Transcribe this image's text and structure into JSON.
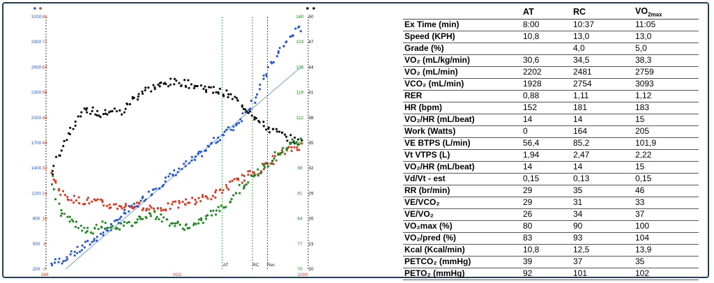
{
  "chart_data": {
    "type": "scatter",
    "xlabel": "VO2",
    "x_range_labels": [
      "349",
      "3200"
    ],
    "left_axes": [
      {
        "color": "#2358d6",
        "ticks": [
          "200",
          "500",
          "800",
          "1100",
          "1400",
          "1700",
          "2000",
          "2300",
          "2600",
          "2900",
          "3200"
        ]
      },
      {
        "color": "#d93a1f",
        "ticks": [
          "0",
          "8",
          "16",
          "24",
          "32",
          "40",
          "48",
          "56",
          "64",
          "72",
          "80"
        ]
      }
    ],
    "right_axes": [
      {
        "color": "#1f8a1f",
        "ticks": [
          "70",
          "77",
          "84",
          "91",
          "98",
          "105",
          "112",
          "119",
          "126",
          "133",
          "140"
        ]
      },
      {
        "color": "#111111",
        "ticks": [
          "20",
          "23",
          "26",
          "29",
          "32",
          "35",
          "38",
          "41",
          "44",
          "47",
          "50"
        ]
      }
    ],
    "markers": [
      "AT",
      "RC",
      "Rec"
    ],
    "series": [
      {
        "color": "#2358d6",
        "x": [
          0.0,
          0.04,
          0.08,
          0.12,
          0.16,
          0.2,
          0.24,
          0.28,
          0.32,
          0.36,
          0.4,
          0.44,
          0.48,
          0.52,
          0.56,
          0.6,
          0.64,
          0.68,
          0.72,
          0.76,
          0.8,
          0.84,
          0.88,
          0.92,
          0.96,
          1.0
        ],
        "y": [
          0.02,
          0.035,
          0.06,
          0.08,
          0.11,
          0.14,
          0.17,
          0.21,
          0.24,
          0.27,
          0.31,
          0.34,
          0.37,
          0.4,
          0.43,
          0.46,
          0.5,
          0.53,
          0.56,
          0.6,
          0.66,
          0.74,
          0.82,
          0.88,
          0.93,
          0.96
        ]
      },
      {
        "color": "#111111",
        "x": [
          0.0,
          0.04,
          0.08,
          0.12,
          0.16,
          0.2,
          0.24,
          0.28,
          0.32,
          0.36,
          0.4,
          0.44,
          0.48,
          0.52,
          0.56,
          0.6,
          0.64,
          0.68,
          0.72,
          0.76,
          0.8,
          0.84,
          0.88,
          0.92,
          0.96,
          1.0
        ],
        "y": [
          0.38,
          0.48,
          0.56,
          0.62,
          0.63,
          0.61,
          0.63,
          0.62,
          0.67,
          0.7,
          0.72,
          0.73,
          0.74,
          0.74,
          0.73,
          0.72,
          0.71,
          0.7,
          0.68,
          0.65,
          0.62,
          0.57,
          0.55,
          0.53,
          0.51,
          0.5
        ]
      },
      {
        "color": "#d93a1f",
        "x": [
          0.0,
          0.04,
          0.08,
          0.12,
          0.16,
          0.2,
          0.24,
          0.28,
          0.32,
          0.36,
          0.4,
          0.44,
          0.48,
          0.52,
          0.56,
          0.6,
          0.64,
          0.68,
          0.72,
          0.76,
          0.8,
          0.84,
          0.88,
          0.92,
          0.96,
          1.0
        ],
        "y": [
          0.38,
          0.3,
          0.28,
          0.27,
          0.27,
          0.26,
          0.25,
          0.25,
          0.25,
          0.25,
          0.24,
          0.24,
          0.25,
          0.26,
          0.27,
          0.28,
          0.29,
          0.31,
          0.34,
          0.36,
          0.38,
          0.4,
          0.43,
          0.46,
          0.48,
          0.49
        ]
      },
      {
        "color": "#1f8a1f",
        "x": [
          0.0,
          0.04,
          0.08,
          0.12,
          0.16,
          0.2,
          0.24,
          0.28,
          0.32,
          0.36,
          0.4,
          0.44,
          0.48,
          0.52,
          0.56,
          0.6,
          0.64,
          0.68,
          0.72,
          0.76,
          0.8,
          0.84,
          0.88,
          0.92,
          0.96,
          1.0
        ],
        "y": [
          0.36,
          0.22,
          0.19,
          0.16,
          0.15,
          0.18,
          0.17,
          0.17,
          0.18,
          0.21,
          0.22,
          0.2,
          0.18,
          0.17,
          0.17,
          0.19,
          0.22,
          0.24,
          0.28,
          0.33,
          0.36,
          0.4,
          0.44,
          0.47,
          0.5,
          0.51
        ]
      }
    ]
  },
  "table": {
    "headers": [
      "",
      "AT",
      "RC",
      "VO2max"
    ],
    "header_max": {
      "base": "VO",
      "sub": "2max"
    },
    "rows": [
      {
        "label": "Ex Time (min)",
        "at": "8:00",
        "rc": "10:37",
        "vo2max": "11:05"
      },
      {
        "label": "Speed (KPH)",
        "at": "10,8",
        "rc": "13,0",
        "vo2max": "13,0"
      },
      {
        "label": "Grade (%)",
        "at": "",
        "rc": "4,0",
        "vo2max": "5,0"
      },
      {
        "label": "VO₂ (mL/kg/min)",
        "at": "30,6",
        "rc": "34,5",
        "vo2max": "38,3"
      },
      {
        "label": "VO₂ (mL/min)",
        "at": "2202",
        "rc": "2481",
        "vo2max": "2759"
      },
      {
        "label": "VCO₂ (mL/min)",
        "at": "1928",
        "rc": "2754",
        "vo2max": "3093"
      },
      {
        "label": "RER",
        "at": "0,88",
        "rc": "1,11",
        "vo2max": "1,12"
      },
      {
        "label": "HR (bpm)",
        "at": "152",
        "rc": "181",
        "vo2max": "183"
      },
      {
        "label": "VO₂/HR (mL/beat)",
        "at": "14",
        "rc": "14",
        "vo2max": "15"
      },
      {
        "label": "Work (Watts)",
        "at": "0",
        "rc": "164",
        "vo2max": "205"
      },
      {
        "label": "VE BTPS (L/min)",
        "at": "56,4",
        "rc": "85,2",
        "vo2max": "101,9"
      },
      {
        "label": "Vt VTPS (L)",
        "at": "1,94",
        "rc": "2,47",
        "vo2max": "2,22"
      },
      {
        "label": "VO₂/HR (mL/beat)",
        "at": "14",
        "rc": "14",
        "vo2max": "15"
      },
      {
        "label": "Vd/Vt - est",
        "at": "0,15",
        "rc": "0,13",
        "vo2max": "0,15"
      },
      {
        "label": "RR (br/min)",
        "at": "29",
        "rc": "35",
        "vo2max": "46"
      },
      {
        "label": "VE/VCO₂",
        "at": "29",
        "rc": "31",
        "vo2max": "33"
      },
      {
        "label": "VE/VO₂",
        "at": "26",
        "rc": "34",
        "vo2max": "37"
      },
      {
        "label": "VO₂max (%)",
        "at": "80",
        "rc": "90",
        "vo2max": "100"
      },
      {
        "label": "VO₂/pred (%)",
        "at": "83",
        "rc": "93",
        "vo2max": "104"
      },
      {
        "label": "Kcal (Kcal/min)",
        "at": "10,8",
        "rc": "12,5",
        "vo2max": "13,9"
      },
      {
        "label": "PETCO₂ (mmHg)",
        "at": "39",
        "rc": "37",
        "vo2max": "35"
      },
      {
        "label": "PETO₂ (mmHg)",
        "at": "92",
        "rc": "101",
        "vo2max": "102"
      }
    ]
  }
}
